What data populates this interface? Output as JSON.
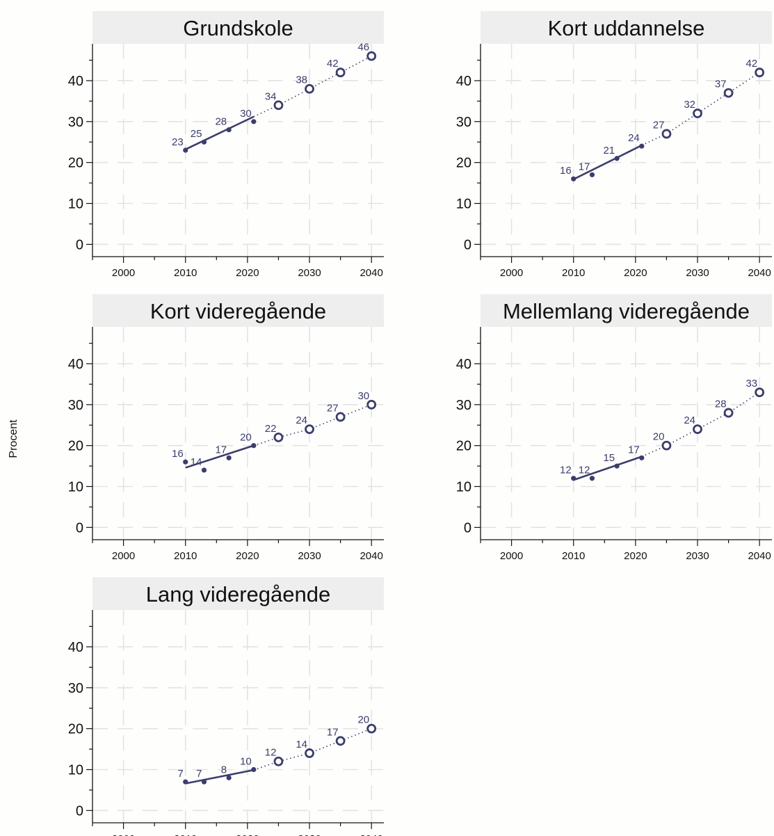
{
  "chart_data": {
    "type": "line",
    "ylabel": "Procent",
    "xlim": [
      1995,
      2042
    ],
    "ylim": [
      -3,
      49
    ],
    "xticks": [
      2000,
      2010,
      2020,
      2030,
      2040
    ],
    "yticks": [
      0,
      10,
      20,
      30,
      40
    ],
    "grid": true,
    "colors": {
      "series": "#3b3d6b",
      "header": "#eeeeee",
      "grid": "#e3e3e3"
    },
    "panels": [
      {
        "title": "Grundskole",
        "observed": {
          "x": [
            2010,
            2013,
            2017,
            2021
          ],
          "y": [
            23,
            25,
            28,
            30
          ],
          "labels": [
            "23",
            "25",
            "28",
            "30"
          ]
        },
        "projected": {
          "x": [
            2025,
            2030,
            2035,
            2040
          ],
          "y": [
            34,
            38,
            42,
            46
          ],
          "labels": [
            "34",
            "38",
            "42",
            "46"
          ]
        },
        "trend_y": [
          23.2,
          31.2
        ]
      },
      {
        "title": "Kort uddannelse",
        "observed": {
          "x": [
            2010,
            2013,
            2017,
            2021
          ],
          "y": [
            16,
            17,
            21,
            24
          ],
          "labels": [
            "16",
            "17",
            "21",
            "24"
          ]
        },
        "projected": {
          "x": [
            2025,
            2030,
            2035,
            2040
          ],
          "y": [
            27,
            32,
            37,
            42
          ],
          "labels": [
            "27",
            "32",
            "37",
            "42"
          ]
        },
        "trend_y": [
          15.9,
          24.2
        ]
      },
      {
        "title": "Kort videregående",
        "observed": {
          "x": [
            2010,
            2013,
            2017,
            2021
          ],
          "y": [
            16,
            14,
            17,
            20
          ],
          "labels": [
            "16",
            "14",
            "17",
            "20"
          ]
        },
        "projected": {
          "x": [
            2025,
            2030,
            2035,
            2040
          ],
          "y": [
            22,
            24,
            27,
            30
          ],
          "labels": [
            "22",
            "24",
            "27",
            "30"
          ]
        },
        "trend_y": [
          14.6,
          20.0
        ]
      },
      {
        "title": "Mellemlang videregående",
        "observed": {
          "x": [
            2010,
            2013,
            2017,
            2021
          ],
          "y": [
            12,
            12,
            15,
            17
          ],
          "labels": [
            "12",
            "12",
            "15",
            "17"
          ]
        },
        "projected": {
          "x": [
            2025,
            2030,
            2035,
            2040
          ],
          "y": [
            20,
            24,
            28,
            33
          ],
          "labels": [
            "20",
            "24",
            "28",
            "33"
          ]
        },
        "trend_y": [
          11.6,
          17.3
        ]
      },
      {
        "title": "Lang videregående",
        "observed": {
          "x": [
            2010,
            2013,
            2017,
            2021
          ],
          "y": [
            7,
            7,
            8,
            10
          ],
          "labels": [
            "7",
            "7",
            "8",
            "10"
          ]
        },
        "projected": {
          "x": [
            2025,
            2030,
            2035,
            2040
          ],
          "y": [
            12,
            14,
            17,
            20
          ],
          "labels": [
            "12",
            "14",
            "17",
            "20"
          ]
        },
        "trend_y": [
          6.6,
          9.9
        ]
      }
    ]
  }
}
